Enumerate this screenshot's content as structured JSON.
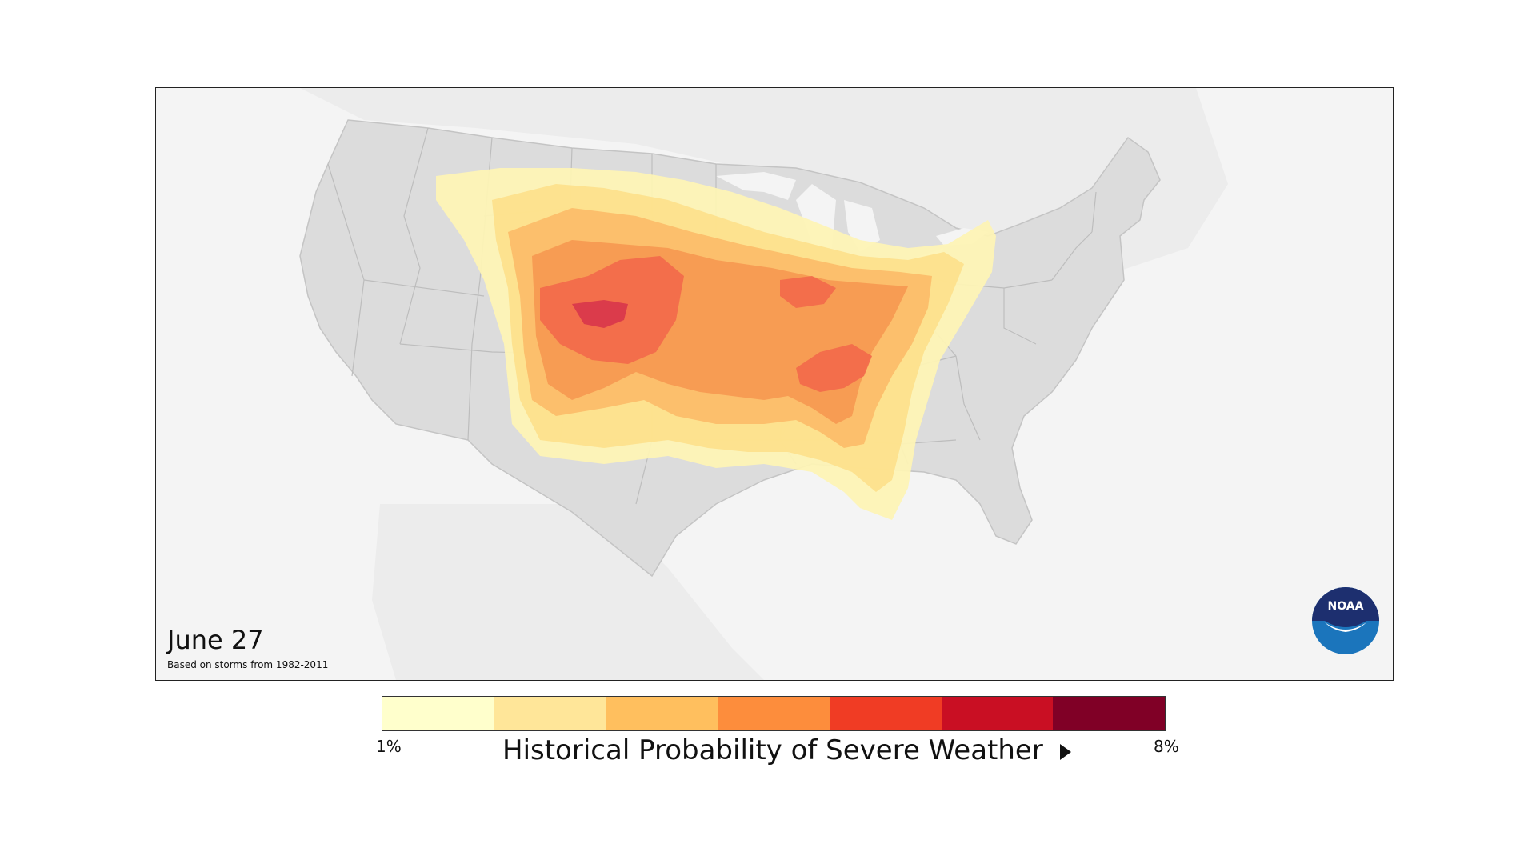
{
  "map": {
    "date": "June 27",
    "source_note": "Based on storms from 1982-2011",
    "logo_text": "NOAA",
    "background_color": "#f4f4f4",
    "land_color": "#dcdcdc",
    "border_color": "#bdbdbd"
  },
  "legend": {
    "title": "Historical Probability of Severe Weather",
    "min_label": "1%",
    "max_label": "8%",
    "colors": [
      "#ffffcc",
      "#ffe699",
      "#ffbf5e",
      "#fd8d3c",
      "#f03c24",
      "#c90f23",
      "#800026"
    ]
  }
}
